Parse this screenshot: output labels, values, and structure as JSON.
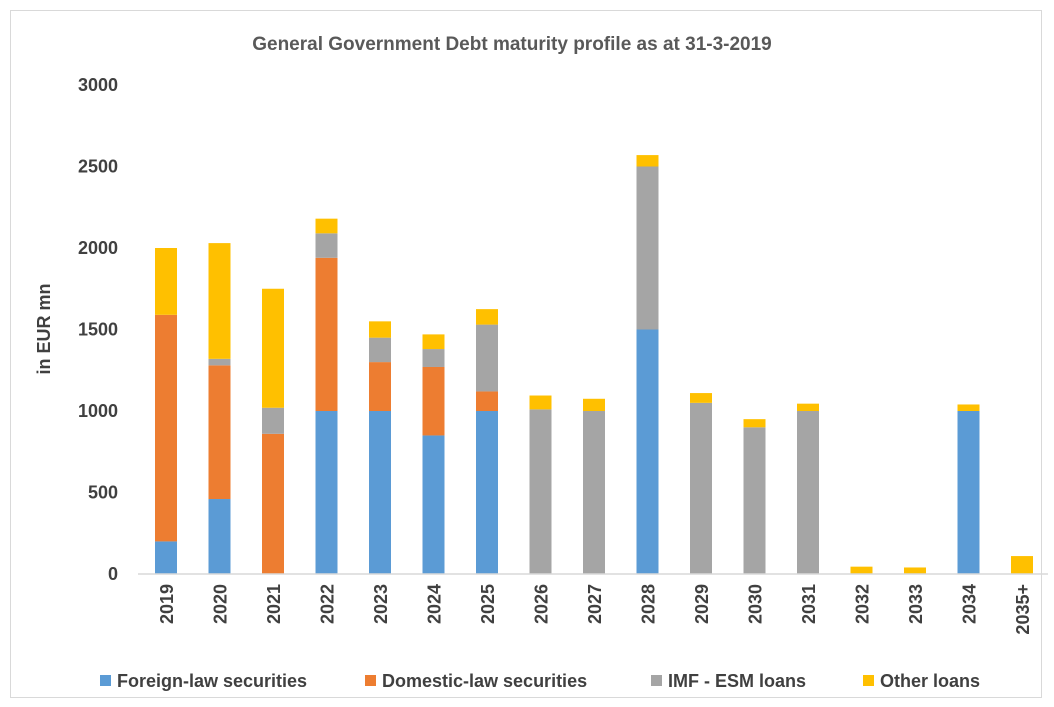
{
  "chart_data": {
    "type": "bar",
    "stacked": true,
    "title": "General Government Debt maturity profile as at 31-3-2019",
    "xlabel": "",
    "ylabel": "in EUR mn",
    "ylim": [
      0,
      3000
    ],
    "yticks": [
      0,
      500,
      1000,
      1500,
      2000,
      2500,
      3000
    ],
    "grid": false,
    "legend_position": "bottom",
    "categories": [
      "2019",
      "2020",
      "2021",
      "2022",
      "2023",
      "2024",
      "2025",
      "2026",
      "2027",
      "2028",
      "2029",
      "2030",
      "2031",
      "2032",
      "2033",
      "2034",
      "2035+"
    ],
    "series": [
      {
        "name": "Foreign-law securities",
        "color": "#5b9bd5",
        "values": [
          200,
          460,
          0,
          1000,
          1000,
          850,
          1000,
          0,
          0,
          1500,
          0,
          0,
          0,
          0,
          0,
          1000,
          0
        ]
      },
      {
        "name": "Domestic-law securities",
        "color": "#ed7d31",
        "values": [
          1390,
          820,
          860,
          940,
          300,
          420,
          120,
          0,
          0,
          0,
          0,
          0,
          0,
          0,
          0,
          0,
          0
        ]
      },
      {
        "name": "IMF - ESM loans",
        "color": "#a5a5a5",
        "values": [
          0,
          40,
          160,
          150,
          150,
          110,
          410,
          1010,
          1000,
          1000,
          1050,
          900,
          1000,
          0,
          0,
          0,
          0
        ]
      },
      {
        "name": "Other loans",
        "color": "#ffc000",
        "values": [
          410,
          710,
          730,
          90,
          100,
          90,
          95,
          85,
          75,
          70,
          60,
          50,
          45,
          45,
          40,
          40,
          110
        ]
      }
    ]
  }
}
